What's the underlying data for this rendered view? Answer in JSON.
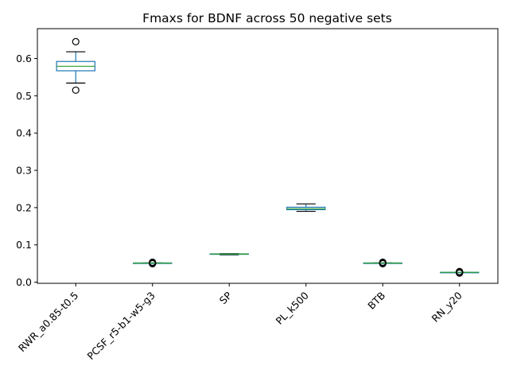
{
  "chart_data": {
    "type": "box",
    "title": "Fmaxs for BDNF across 50 negative sets",
    "xlabel": "",
    "ylabel": "",
    "ylim": [
      -0.003,
      0.68
    ],
    "yticks": [
      "0.0",
      "0.1",
      "0.2",
      "0.3",
      "0.4",
      "0.5",
      "0.6"
    ],
    "grid": false,
    "legend": "none",
    "colors": {
      "box": "#1f77b4",
      "median": "#2ca02c",
      "cap": "#000000"
    },
    "categories": [
      "RWR_a0.85-t0.5",
      "PCSF_r5-b1-w5-g3",
      "SP",
      "PL_k500",
      "BTB",
      "RN_y20"
    ],
    "boxes": [
      {
        "whislo": 0.534,
        "q1": 0.567,
        "med": 0.579,
        "q3": 0.592,
        "whishi": 0.618,
        "fliers": [
          0.645,
          0.515
        ]
      },
      {
        "whislo": 0.0515,
        "q1": 0.0515,
        "med": 0.0515,
        "q3": 0.0515,
        "whishi": 0.0515,
        "fliers": [
          0.0495,
          0.0505,
          0.0525,
          0.0535
        ]
      },
      {
        "whislo": 0.0735,
        "q1": 0.075,
        "med": 0.0755,
        "q3": 0.076,
        "whishi": 0.0765,
        "fliers": []
      },
      {
        "whislo": 0.19,
        "q1": 0.1945,
        "med": 0.197,
        "q3": 0.201,
        "whishi": 0.21,
        "fliers": []
      },
      {
        "whislo": 0.0515,
        "q1": 0.0515,
        "med": 0.0515,
        "q3": 0.0515,
        "whishi": 0.0515,
        "fliers": [
          0.0495,
          0.0505,
          0.0525,
          0.0535
        ]
      },
      {
        "whislo": 0.0265,
        "q1": 0.0265,
        "med": 0.0265,
        "q3": 0.0265,
        "whishi": 0.0265,
        "fliers": [
          0.0245,
          0.0255,
          0.0275,
          0.0285
        ]
      }
    ]
  }
}
